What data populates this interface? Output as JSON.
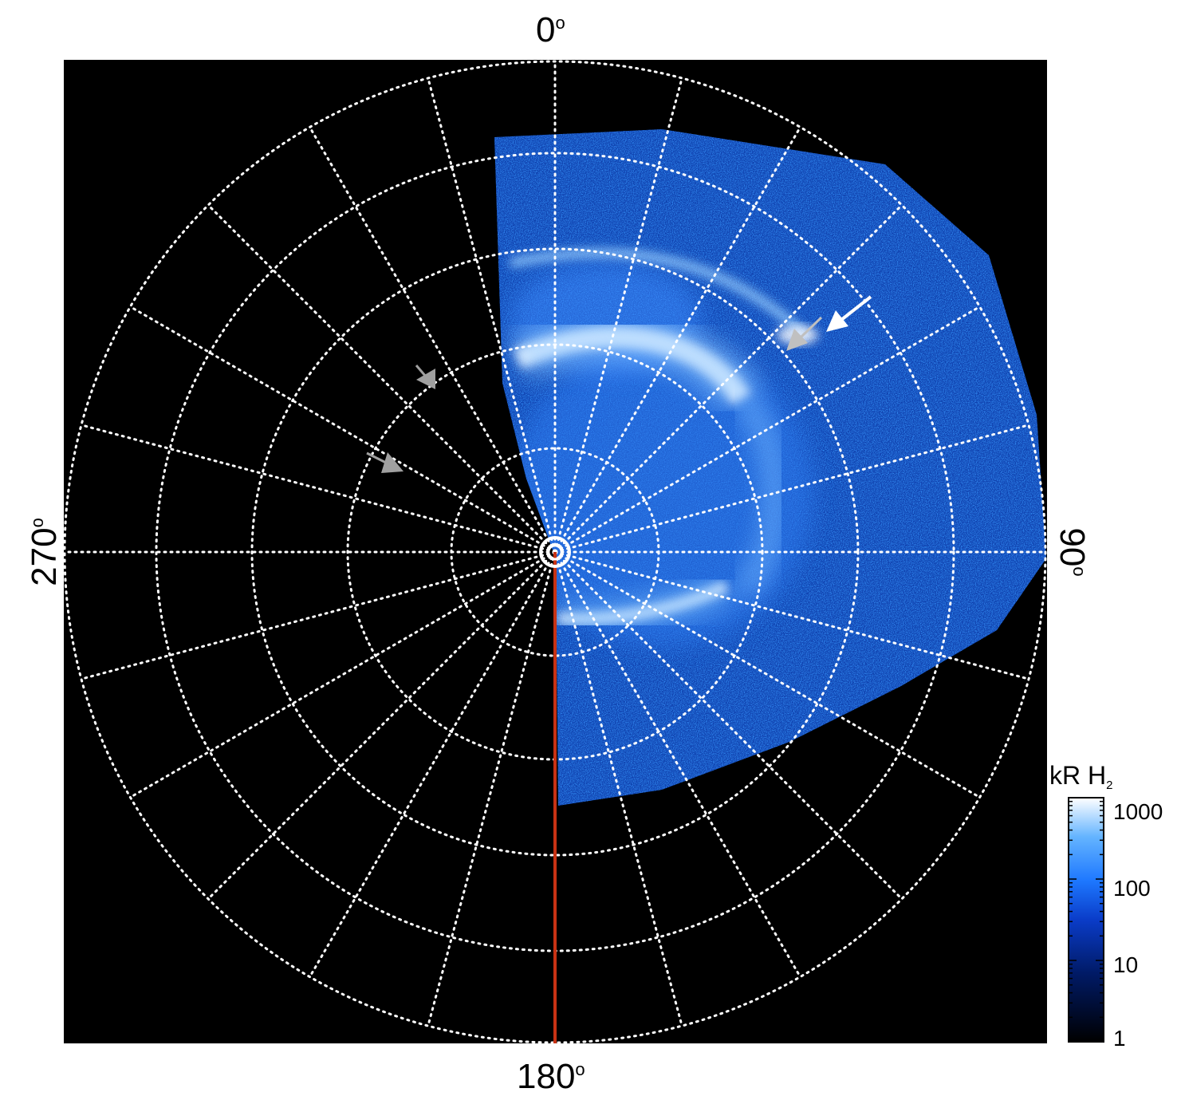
{
  "figure": {
    "angle_labels": {
      "top": "0",
      "right": "90",
      "bottom": "180",
      "left": "270",
      "degree_symbol": "o"
    },
    "colorbar": {
      "title": "kR H",
      "title_subscript": "2",
      "ticks": [
        "1000",
        "100",
        "10",
        "1"
      ],
      "scale": "log",
      "range": [
        1,
        1000
      ],
      "colors": [
        "#000000",
        "#001a66",
        "#0a3cc8",
        "#1e78ff",
        "#64b4ff",
        "#ffffff"
      ]
    },
    "colors": {
      "background": "#000000",
      "grid": "#ffffff",
      "meridian_line": "#c83214",
      "arrow_white": "#ffffff",
      "arrow_grey": "#a0a0a0"
    }
  }
}
